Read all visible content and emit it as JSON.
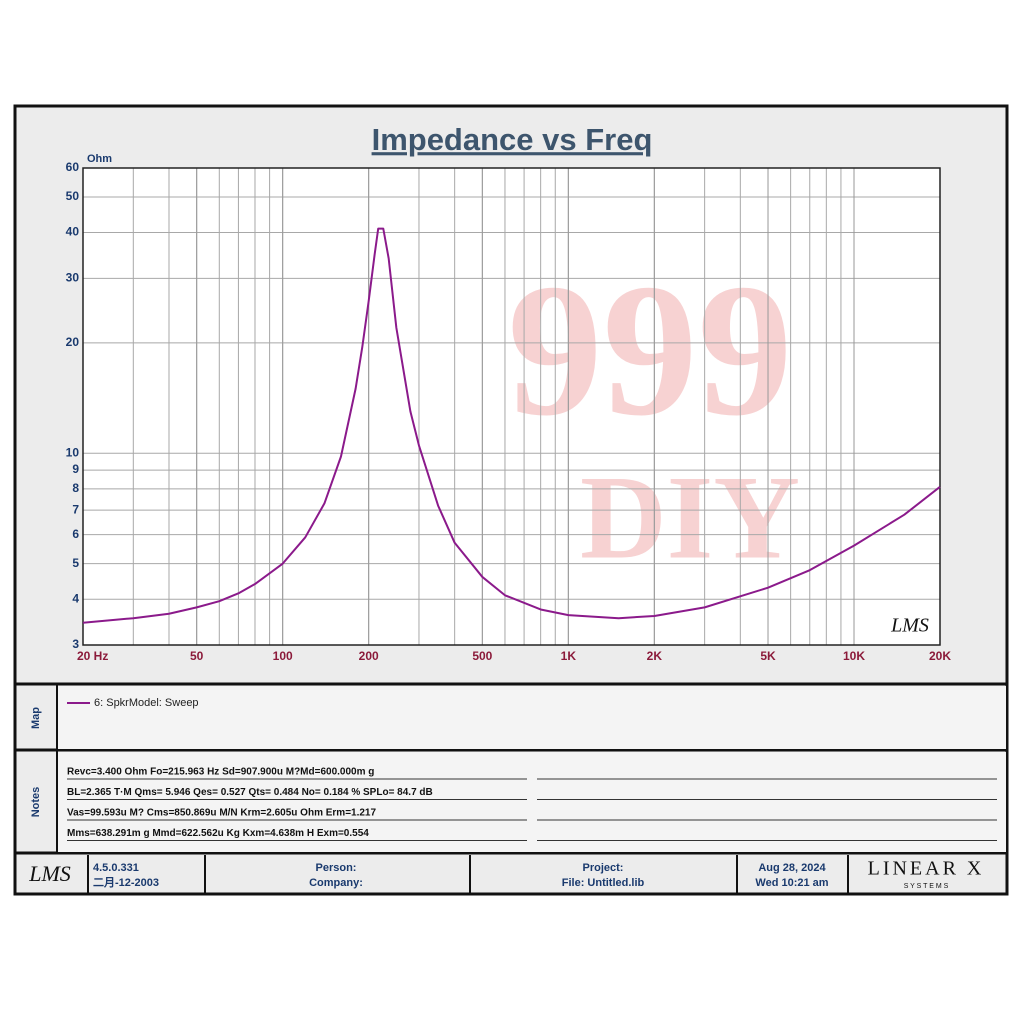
{
  "chart_data": {
    "type": "line",
    "title": "Impedance vs Freq",
    "y_unit": "Ohm",
    "x": [
      20,
      30,
      40,
      50,
      60,
      70,
      80,
      100,
      120,
      140,
      160,
      180,
      190,
      200,
      210,
      216,
      225,
      235,
      250,
      280,
      300,
      350,
      400,
      500,
      600,
      800,
      1000,
      1500,
      2000,
      3000,
      5000,
      7000,
      10000,
      15000,
      20000
    ],
    "series": [
      {
        "name": "6: SpkrModel: Sweep",
        "color": "#8b1a8b",
        "values": [
          3.45,
          3.55,
          3.65,
          3.8,
          3.95,
          4.15,
          4.4,
          5.0,
          5.9,
          7.3,
          9.8,
          15,
          19.5,
          26,
          35,
          41,
          41,
          34,
          22,
          13,
          10.5,
          7.2,
          5.7,
          4.6,
          4.1,
          3.75,
          3.62,
          3.55,
          3.6,
          3.8,
          4.3,
          4.8,
          5.6,
          6.8,
          8.1
        ]
      }
    ],
    "xlim": [
      20,
      20000
    ],
    "ylim": [
      3,
      60
    ],
    "xlog": true,
    "ylog": true,
    "grid": true,
    "xticks": [
      {
        "value": 20,
        "label": "20  Hz"
      },
      50,
      100,
      200,
      500,
      {
        "value": 1000,
        "label": "1K"
      },
      {
        "value": 2000,
        "label": "2K"
      },
      {
        "value": 5000,
        "label": "5K"
      },
      {
        "value": 10000,
        "label": "10K"
      },
      {
        "value": 20000,
        "label": "20K"
      }
    ],
    "yticks": [
      3,
      4,
      5,
      6,
      7,
      8,
      9,
      10,
      20,
      30,
      40,
      50,
      60
    ],
    "watermark": [
      "999",
      "DIY"
    ],
    "corner_logo": "LMS"
  },
  "map": {
    "label": "Map"
  },
  "notes": {
    "label": "Notes",
    "lines": [
      "Revc=3.400 Ohm  Fo=215.963 Hz  Sd=907.900u M?Md=600.000m g",
      "BL=2.365 T·M  Qms= 5.946  Qes= 0.527  Qts= 0.484  No= 0.184 %  SPLo= 84.7 dB",
      "Vas=99.593u M? Cms=850.869u M/N  Krm=2.605u Ohm  Erm=1.217",
      "Mms=638.291m g  Mmd=622.562u Kg  Kxm=4.638m H  Exm=0.554"
    ]
  },
  "footer": {
    "logo": "LMS",
    "version": "4.5.0.331",
    "build_date": "二月-12-2003",
    "person": "Person:",
    "company": "Company:",
    "project": "Project:",
    "file": "File: Untitled.lib",
    "date": "Aug 28, 2024",
    "time": "Wed 10:21 am",
    "brand": "LINEAR X",
    "brand_sub": "S Y S T E M S"
  }
}
